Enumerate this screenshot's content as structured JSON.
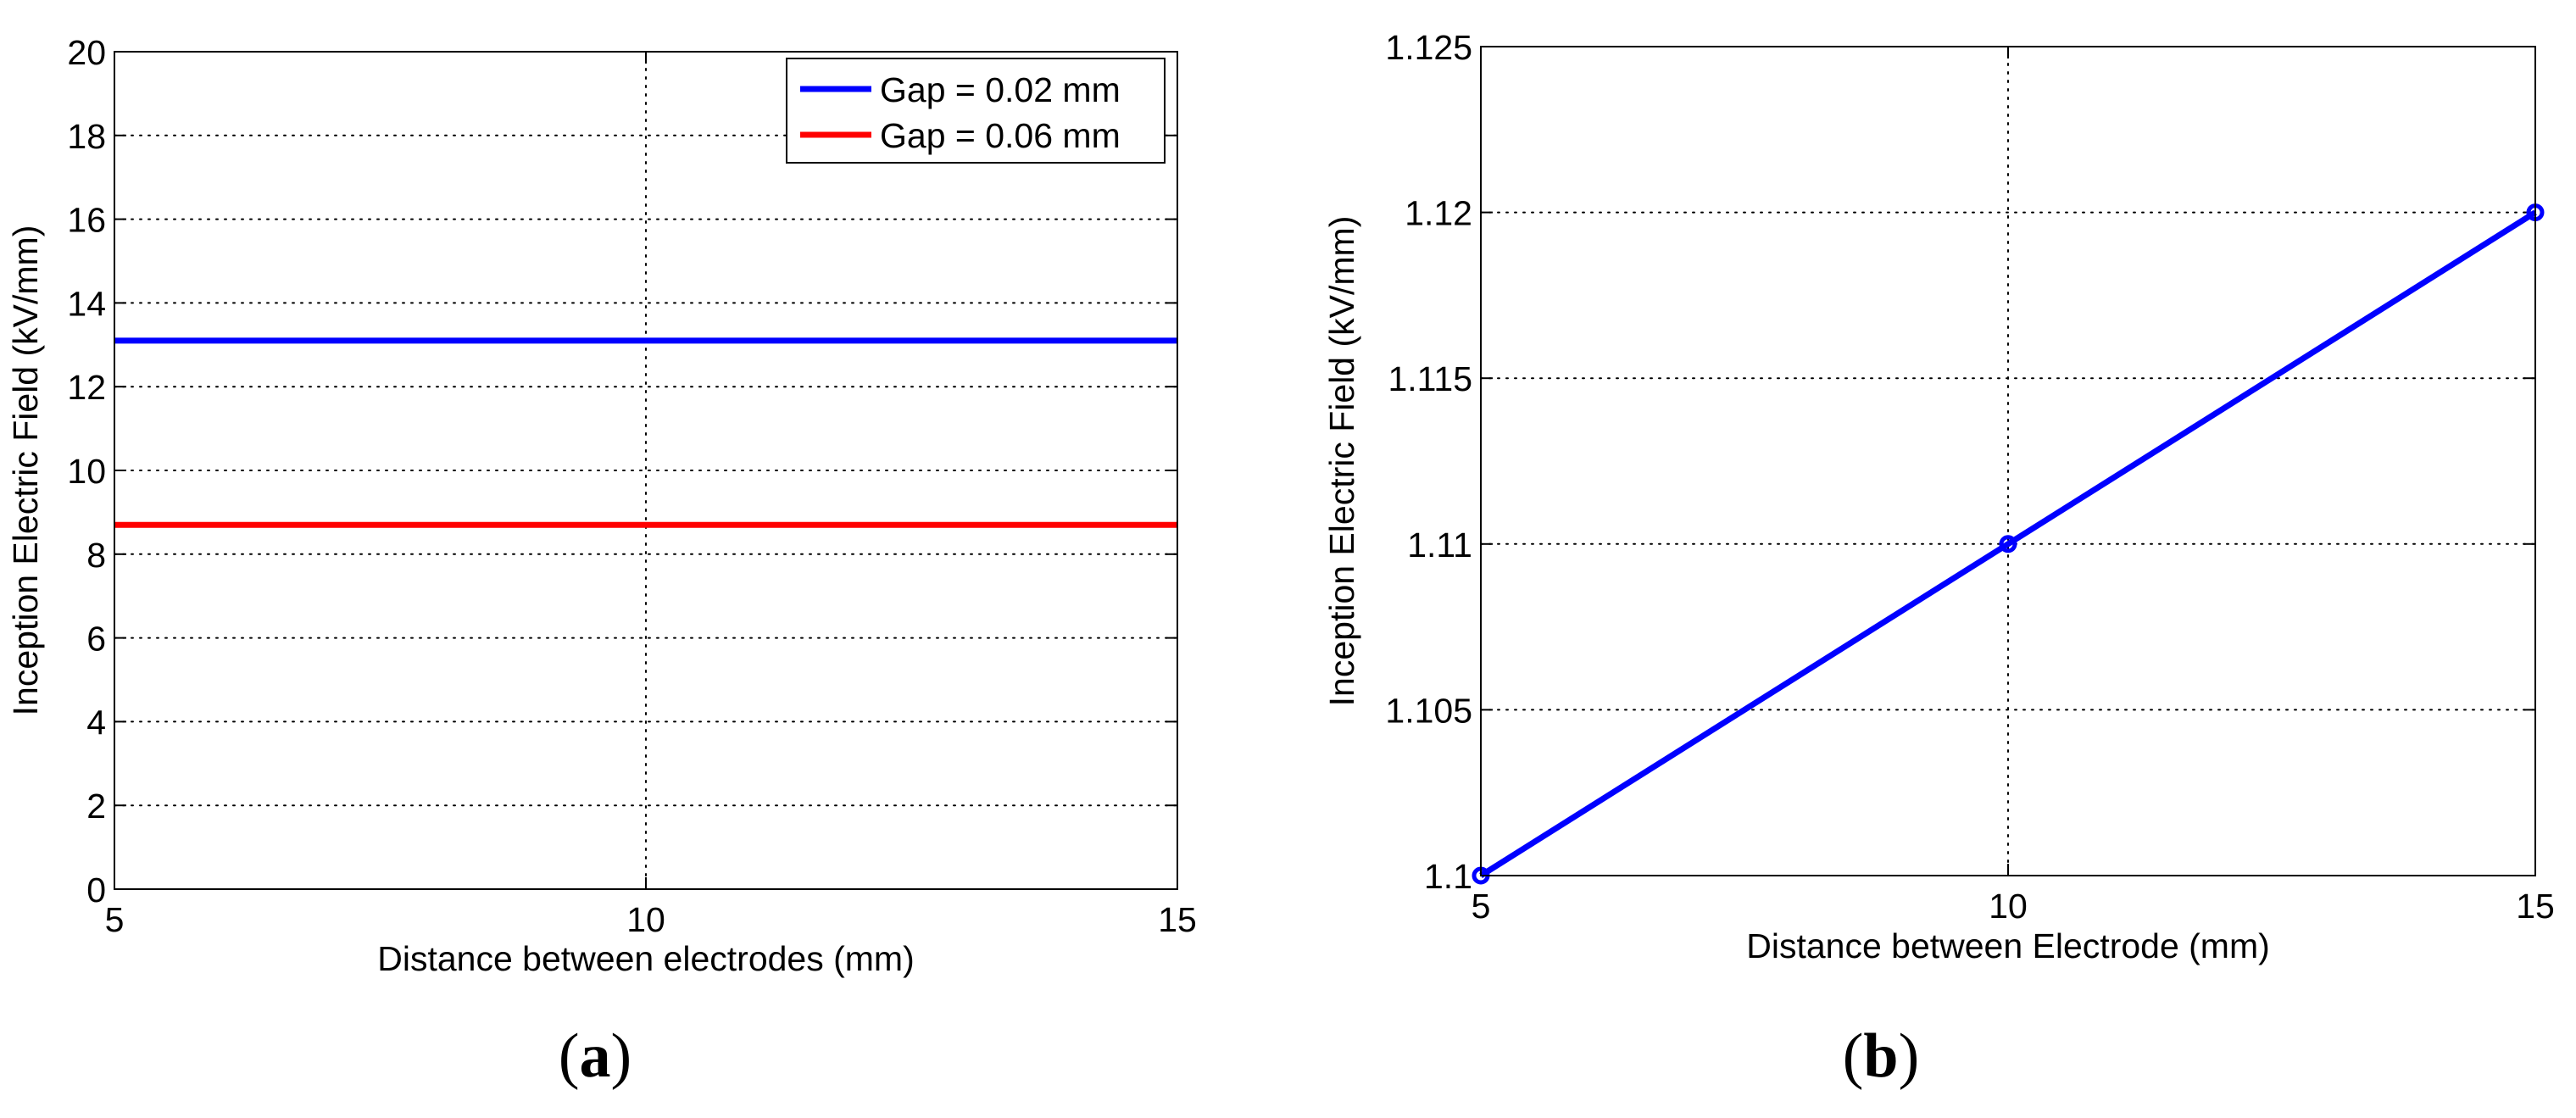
{
  "chart_data": [
    {
      "type": "line",
      "panel": "(a)",
      "panel_letter": "a",
      "title": "",
      "xlabel": "Distance between electrodes (mm)",
      "ylabel": "Inception Electric Field (kV/mm)",
      "xlim": [
        5,
        15
      ],
      "ylim": [
        0,
        20
      ],
      "xticks": [
        5,
        10,
        15
      ],
      "yticks": [
        0,
        2,
        4,
        6,
        8,
        10,
        12,
        14,
        16,
        18,
        20
      ],
      "xtick_labels": [
        "5",
        "10",
        "15"
      ],
      "ytick_labels": [
        "0",
        "2",
        "4",
        "6",
        "8",
        "10",
        "12",
        "14",
        "16",
        "18",
        "20"
      ],
      "grid": true,
      "legend_position": "top-right",
      "series": [
        {
          "name": "Gap = 0.02 mm",
          "color": "#0000ff",
          "x": [
            5,
            15
          ],
          "y": [
            13.1,
            13.1
          ],
          "markers": false
        },
        {
          "name": "Gap = 0.06 mm",
          "color": "#ff0000",
          "x": [
            5,
            15
          ],
          "y": [
            8.7,
            8.7
          ],
          "markers": false
        }
      ]
    },
    {
      "type": "line",
      "panel": "(b)",
      "panel_letter": "b",
      "title": "",
      "xlabel": "Distance between Electrode (mm)",
      "ylabel": "Inception Electric Field (kV/mm)",
      "xlim": [
        5,
        15
      ],
      "ylim": [
        1.1,
        1.125
      ],
      "xticks": [
        5,
        10,
        15
      ],
      "yticks": [
        1.1,
        1.105,
        1.11,
        1.115,
        1.12,
        1.125
      ],
      "xtick_labels": [
        "5",
        "10",
        "15"
      ],
      "ytick_labels": [
        "1.1",
        "1.105",
        "1.11",
        "1.115",
        "1.12",
        "1.125"
      ],
      "grid": true,
      "legend_position": "none",
      "series": [
        {
          "color": "#0000ff",
          "x": [
            5,
            10,
            15
          ],
          "y": [
            1.1,
            1.11,
            1.12
          ],
          "markers": true
        }
      ]
    }
  ]
}
